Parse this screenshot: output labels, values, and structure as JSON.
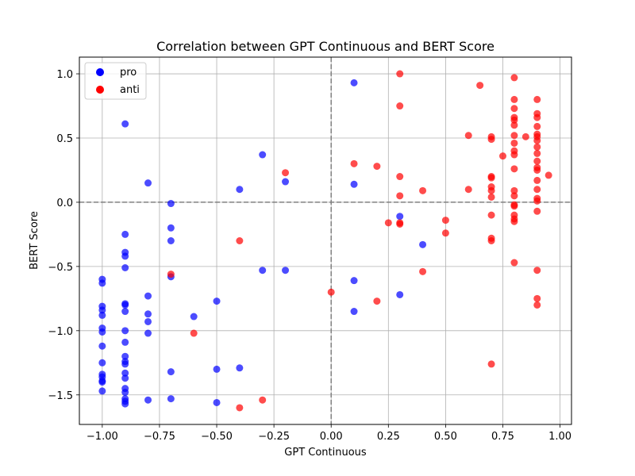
{
  "chart_data": {
    "type": "scatter",
    "title": "Correlation between GPT Continuous and BERT Score",
    "xlabel": "GPT Continuous",
    "ylabel": "BERT Score",
    "xlim": [
      -1.1,
      1.05
    ],
    "ylim": [
      -1.73,
      1.13
    ],
    "xticks": [
      -1.0,
      -0.75,
      -0.5,
      -0.25,
      0.0,
      0.25,
      0.5,
      0.75,
      1.0
    ],
    "xtick_labels": [
      "−1.00",
      "−0.75",
      "−0.50",
      "−0.25",
      "0.00",
      "0.25",
      "0.50",
      "0.75",
      "1.00"
    ],
    "yticks": [
      -1.5,
      -1.0,
      -0.5,
      0.0,
      0.5,
      1.0
    ],
    "ytick_labels": [
      "−1.5",
      "−1.0",
      "−0.5",
      "0.0",
      "0.5",
      "1.0"
    ],
    "grid": true,
    "reference_lines": {
      "x": 0.0,
      "y": 0.0,
      "style": "dashed",
      "color": "#808080"
    },
    "legend": {
      "position": "top-left"
    },
    "series": [
      {
        "name": "pro",
        "color": "#0000ff",
        "points": [
          [
            -1.0,
            -0.6
          ],
          [
            -1.0,
            -0.63
          ],
          [
            -1.0,
            -0.81
          ],
          [
            -1.0,
            -0.84
          ],
          [
            -1.0,
            -0.88
          ],
          [
            -1.0,
            -0.98
          ],
          [
            -1.0,
            -1.01
          ],
          [
            -1.0,
            -1.12
          ],
          [
            -1.0,
            -1.25
          ],
          [
            -1.0,
            -1.34
          ],
          [
            -1.0,
            -1.36
          ],
          [
            -1.0,
            -1.39
          ],
          [
            -1.0,
            -1.4
          ],
          [
            -1.0,
            -1.47
          ],
          [
            -0.9,
            0.61
          ],
          [
            -0.9,
            -0.25
          ],
          [
            -0.9,
            -0.39
          ],
          [
            -0.9,
            -0.42
          ],
          [
            -0.9,
            -0.51
          ],
          [
            -0.9,
            -0.79
          ],
          [
            -0.9,
            -0.8
          ],
          [
            -0.9,
            -0.85
          ],
          [
            -0.9,
            -1.0
          ],
          [
            -0.9,
            -1.09
          ],
          [
            -0.9,
            -1.2
          ],
          [
            -0.9,
            -1.24
          ],
          [
            -0.9,
            -1.26
          ],
          [
            -0.9,
            -1.33
          ],
          [
            -0.9,
            -1.37
          ],
          [
            -0.9,
            -1.45
          ],
          [
            -0.9,
            -1.48
          ],
          [
            -0.9,
            -1.53
          ],
          [
            -0.9,
            -1.55
          ],
          [
            -0.9,
            -1.57
          ],
          [
            -0.8,
            0.15
          ],
          [
            -0.8,
            -0.73
          ],
          [
            -0.8,
            -0.87
          ],
          [
            -0.8,
            -0.93
          ],
          [
            -0.8,
            -1.02
          ],
          [
            -0.8,
            -1.54
          ],
          [
            -0.7,
            -0.01
          ],
          [
            -0.7,
            -0.2
          ],
          [
            -0.7,
            -0.3
          ],
          [
            -0.7,
            -0.58
          ],
          [
            -0.7,
            -1.32
          ],
          [
            -0.7,
            -1.53
          ],
          [
            -0.6,
            -0.89
          ],
          [
            -0.5,
            -0.77
          ],
          [
            -0.5,
            -1.3
          ],
          [
            -0.5,
            -1.56
          ],
          [
            -0.4,
            0.1
          ],
          [
            -0.4,
            -1.29
          ],
          [
            -0.3,
            0.37
          ],
          [
            -0.3,
            -0.53
          ],
          [
            -0.2,
            0.16
          ],
          [
            -0.2,
            -0.53
          ],
          [
            0.1,
            0.93
          ],
          [
            0.1,
            0.14
          ],
          [
            0.1,
            -0.61
          ],
          [
            0.1,
            -0.85
          ],
          [
            0.3,
            -0.11
          ],
          [
            0.3,
            -0.72
          ],
          [
            0.4,
            -0.33
          ]
        ]
      },
      {
        "name": "anti",
        "color": "#ff0000",
        "points": [
          [
            -0.7,
            -0.56
          ],
          [
            -0.6,
            -1.02
          ],
          [
            -0.4,
            -0.3
          ],
          [
            -0.4,
            -1.6
          ],
          [
            -0.3,
            -1.54
          ],
          [
            -0.2,
            0.23
          ],
          [
            0.0,
            -0.7
          ],
          [
            0.1,
            0.3
          ],
          [
            0.2,
            0.28
          ],
          [
            0.2,
            -0.77
          ],
          [
            0.25,
            -0.16
          ],
          [
            0.3,
            1.0
          ],
          [
            0.3,
            0.75
          ],
          [
            0.3,
            0.2
          ],
          [
            0.3,
            0.05
          ],
          [
            0.3,
            -0.16
          ],
          [
            0.3,
            -0.17
          ],
          [
            0.4,
            0.09
          ],
          [
            0.4,
            -0.54
          ],
          [
            0.5,
            -0.14
          ],
          [
            0.5,
            -0.24
          ],
          [
            0.6,
            0.52
          ],
          [
            0.6,
            0.1
          ],
          [
            0.65,
            0.91
          ],
          [
            0.7,
            0.51
          ],
          [
            0.7,
            0.49
          ],
          [
            0.7,
            0.2
          ],
          [
            0.7,
            0.19
          ],
          [
            0.7,
            0.12
          ],
          [
            0.7,
            0.09
          ],
          [
            0.7,
            0.04
          ],
          [
            0.7,
            -0.1
          ],
          [
            0.7,
            -0.28
          ],
          [
            0.7,
            -0.3
          ],
          [
            0.7,
            -1.26
          ],
          [
            0.75,
            0.36
          ],
          [
            0.8,
            0.97
          ],
          [
            0.8,
            0.8
          ],
          [
            0.8,
            0.73
          ],
          [
            0.8,
            0.66
          ],
          [
            0.8,
            0.64
          ],
          [
            0.8,
            0.6
          ],
          [
            0.8,
            0.52
          ],
          [
            0.8,
            0.46
          ],
          [
            0.8,
            0.4
          ],
          [
            0.8,
            0.37
          ],
          [
            0.8,
            0.26
          ],
          [
            0.8,
            0.09
          ],
          [
            0.8,
            0.05
          ],
          [
            0.8,
            -0.02
          ],
          [
            0.8,
            -0.03
          ],
          [
            0.8,
            -0.1
          ],
          [
            0.8,
            -0.13
          ],
          [
            0.8,
            -0.15
          ],
          [
            0.8,
            -0.47
          ],
          [
            0.85,
            0.51
          ],
          [
            0.9,
            0.8
          ],
          [
            0.9,
            0.69
          ],
          [
            0.9,
            0.66
          ],
          [
            0.9,
            0.59
          ],
          [
            0.9,
            0.53
          ],
          [
            0.9,
            0.51
          ],
          [
            0.9,
            0.48
          ],
          [
            0.9,
            0.43
          ],
          [
            0.9,
            0.38
          ],
          [
            0.9,
            0.32
          ],
          [
            0.9,
            0.27
          ],
          [
            0.9,
            0.25
          ],
          [
            0.9,
            0.17
          ],
          [
            0.9,
            0.1
          ],
          [
            0.9,
            0.03
          ],
          [
            0.9,
            0.01
          ],
          [
            0.9,
            -0.07
          ],
          [
            0.9,
            -0.53
          ],
          [
            0.9,
            -0.75
          ],
          [
            0.9,
            -0.8
          ],
          [
            0.95,
            0.21
          ]
        ]
      }
    ]
  }
}
